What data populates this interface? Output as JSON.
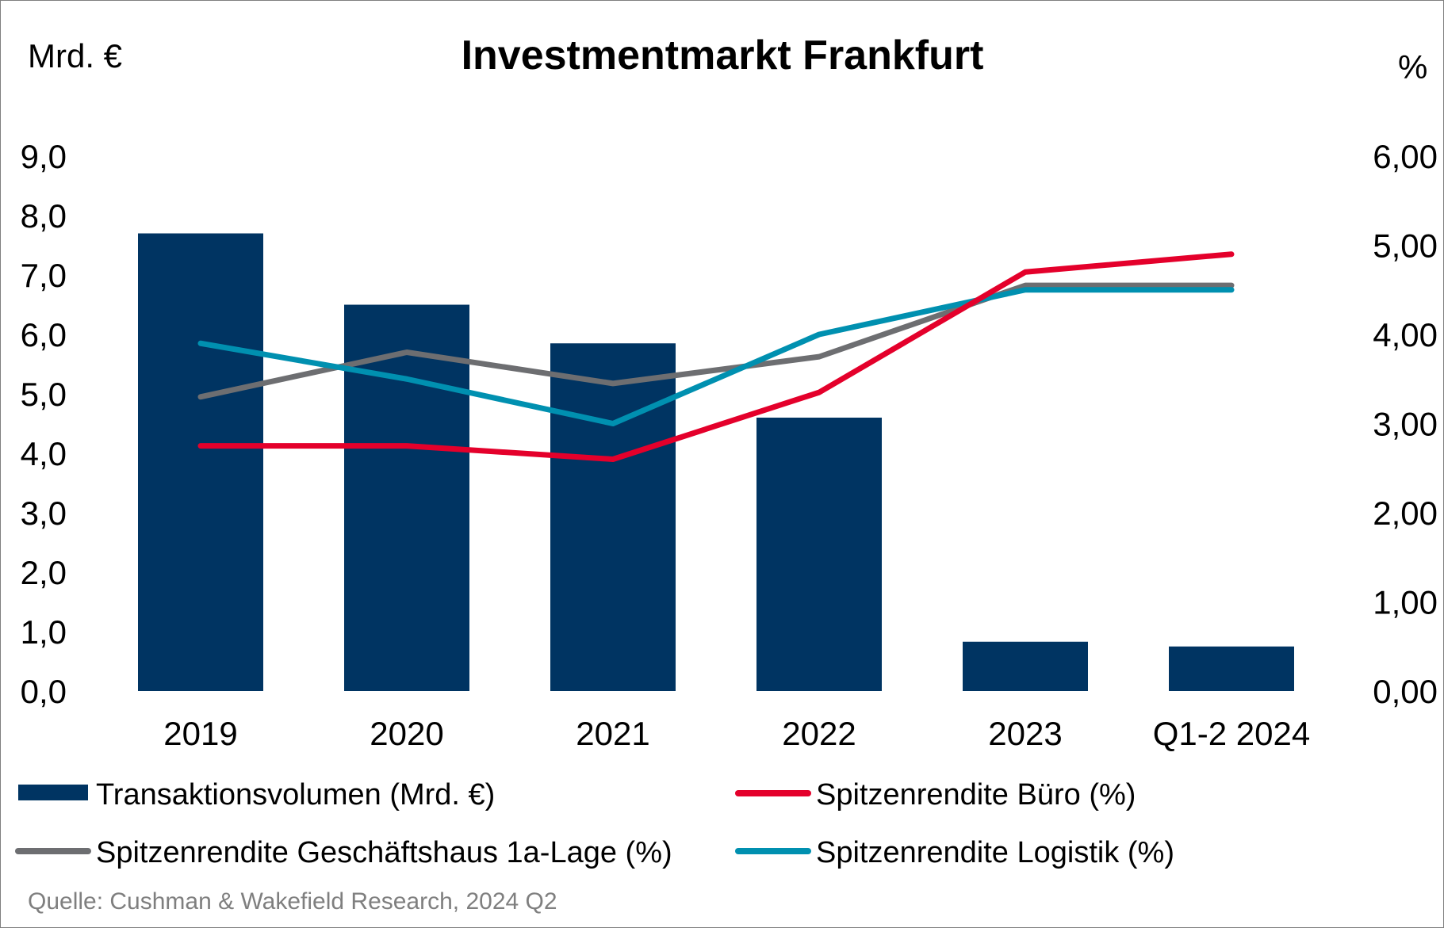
{
  "chart_data": {
    "type": "bar+line",
    "title": "Investmentmarkt Frankfurt",
    "y_left_unit": "Mrd. €",
    "y_right_unit": "%",
    "categories": [
      "2019",
      "2020",
      "2021",
      "2022",
      "2023",
      "Q1-2 2024"
    ],
    "y_left": {
      "min": 0,
      "max": 9,
      "step": 1,
      "ticks": [
        "0,0",
        "1,0",
        "2,0",
        "3,0",
        "4,0",
        "5,0",
        "6,0",
        "7,0",
        "8,0",
        "9,0"
      ]
    },
    "y_right": {
      "min": 0,
      "max": 6,
      "step": 1,
      "ticks": [
        "0,00",
        "1,00",
        "2,00",
        "3,00",
        "4,00",
        "5,00",
        "6,00"
      ]
    },
    "bars": {
      "name": "Transaktionsvolumen (Mrd. €)",
      "color": "#003462",
      "values": [
        7.7,
        6.5,
        5.85,
        4.6,
        0.83,
        0.75
      ]
    },
    "lines": [
      {
        "name": "Spitzenrendite Büro (%)",
        "color": "#e4002b",
        "values": [
          2.75,
          2.75,
          2.6,
          3.35,
          4.7,
          4.9
        ]
      },
      {
        "name": "Spitzenrendite Geschäftshaus 1a-Lage (%)",
        "color": "#6d6e71",
        "values": [
          3.3,
          3.8,
          3.45,
          3.75,
          4.55,
          4.55
        ]
      },
      {
        "name": "Spitzenrendite Logistik (%)",
        "color": "#0090b0",
        "values": [
          3.9,
          3.5,
          3.0,
          4.0,
          4.5,
          4.5
        ]
      }
    ],
    "legend_position": "bottom",
    "grid": false,
    "source": "Quelle: Cushman & Wakefield Research, 2024 Q2"
  }
}
